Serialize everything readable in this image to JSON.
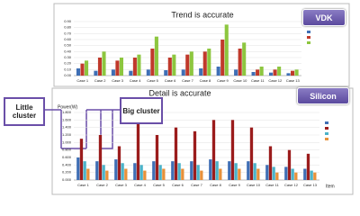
{
  "chart_data": [
    {
      "type": "bar",
      "title": "Trend is accurate",
      "categories": [
        "Case 1",
        "Case 2",
        "Case 3",
        "Case 4",
        "Case 5",
        "Case 6",
        "Case 7",
        "Case 8",
        "Case 9",
        "Case 10",
        "Case 11",
        "Case 12",
        "Case 13"
      ],
      "series": [
        {
          "color": "#3f6fb5",
          "values": [
            0.12,
            0.08,
            0.1,
            0.08,
            0.1,
            0.09,
            0.1,
            0.12,
            0.15,
            0.1,
            0.06,
            0.05,
            0.04
          ]
        },
        {
          "color": "#c0392b",
          "values": [
            0.2,
            0.3,
            0.25,
            0.3,
            0.45,
            0.3,
            0.35,
            0.4,
            0.6,
            0.45,
            0.1,
            0.1,
            0.08
          ]
        },
        {
          "color": "#8dc63f",
          "values": [
            0.25,
            0.4,
            0.3,
            0.35,
            0.65,
            0.35,
            0.4,
            0.45,
            0.85,
            0.55,
            0.15,
            0.15,
            0.1
          ]
        }
      ],
      "ylim": [
        0,
        0.9
      ],
      "yticks": [
        {
          "value": 0,
          "label": "0.00"
        },
        {
          "value": 0.1,
          "label": "0.10"
        },
        {
          "value": 0.2,
          "label": "0.20"
        },
        {
          "value": 0.3,
          "label": "0.30"
        },
        {
          "value": 0.4,
          "label": "0.40"
        },
        {
          "value": 0.5,
          "label": "0.50"
        },
        {
          "value": 0.6,
          "label": "0.60"
        },
        {
          "value": 0.7,
          "label": "0.70"
        },
        {
          "value": 0.8,
          "label": "0.80"
        },
        {
          "value": 0.9,
          "label": "0.90"
        }
      ],
      "grid": true
    },
    {
      "type": "bar",
      "title": "Detail is accurate",
      "y_label": "Power(W)",
      "x_label": "Item",
      "categories": [
        "Case 1",
        "Case 2",
        "Case 3",
        "Case 4",
        "Case 5",
        "Case 6",
        "Case 7",
        "Case 8",
        "Case 9",
        "Case 10",
        "Case 11",
        "Case 12",
        "Case 13"
      ],
      "series": [
        {
          "color": "#3f6fb5",
          "values": [
            0.6,
            0.5,
            0.55,
            0.45,
            0.5,
            0.5,
            0.5,
            0.55,
            0.5,
            0.5,
            0.4,
            0.35,
            0.3
          ]
        },
        {
          "color": "#9b1c1c",
          "values": [
            1.1,
            1.2,
            0.9,
            1.5,
            1.2,
            1.4,
            1.3,
            1.6,
            1.6,
            1.4,
            0.9,
            0.8,
            0.7
          ]
        },
        {
          "color": "#4bb3c9",
          "values": [
            0.5,
            0.4,
            0.45,
            0.4,
            0.4,
            0.45,
            0.4,
            0.5,
            0.45,
            0.45,
            0.35,
            0.3,
            0.25
          ]
        },
        {
          "color": "#e8913a",
          "values": [
            0.3,
            0.25,
            0.3,
            0.25,
            0.3,
            0.3,
            0.25,
            0.3,
            0.3,
            0.3,
            0.2,
            0.2,
            0.2
          ]
        }
      ],
      "ylim": [
        0,
        1.8
      ],
      "yticks": [
        {
          "value": 0,
          "label": "0.000"
        },
        {
          "value": 0.2,
          "label": "0.200"
        },
        {
          "value": 0.4,
          "label": "0.400"
        },
        {
          "value": 0.6,
          "label": "0.600"
        },
        {
          "value": 0.8,
          "label": "0.800"
        },
        {
          "value": 1.0,
          "label": "1.000"
        },
        {
          "value": 1.2,
          "label": "1.200"
        },
        {
          "value": 1.4,
          "label": "1.400"
        },
        {
          "value": 1.6,
          "label": "1.600"
        },
        {
          "value": 1.8,
          "label": "1.800"
        }
      ],
      "grid": true
    }
  ],
  "annotations": [
    "VDK",
    "Silicon",
    "Little cluster",
    "Big cluster"
  ]
}
